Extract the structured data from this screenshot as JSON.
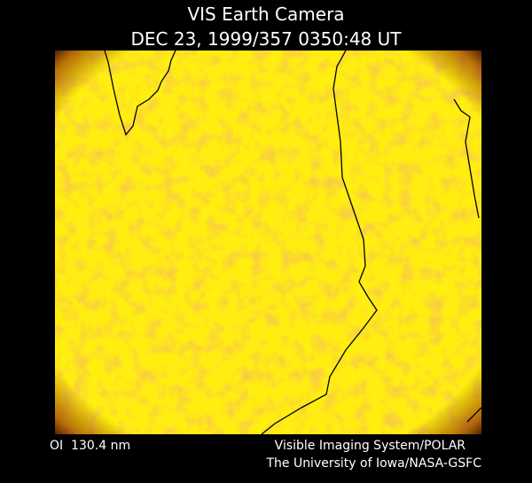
{
  "header": {
    "title": "VIS Earth Camera",
    "timestamp": "DEC 23, 1999/357 0350:48 UT"
  },
  "footer": {
    "filter": "OI  130.4 nm",
    "credit_line1": "Visible Imaging System/POLAR",
    "credit_line2": "The University of Iowa/NASA-GSFC"
  }
}
